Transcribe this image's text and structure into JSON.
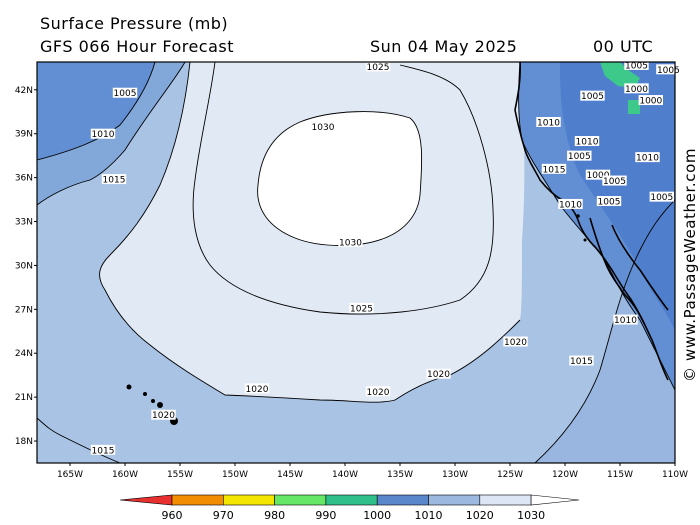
{
  "header": {
    "title": "Surface Pressure (mb)",
    "subtitle": "GFS 066 Hour Forecast",
    "date": "Sun 04 May 2025",
    "time": "00 UTC"
  },
  "credit": "© www.PassageWeather.com",
  "axes": {
    "lat_labels": [
      "42N",
      "39N",
      "36N",
      "33N",
      "30N",
      "27N",
      "24N",
      "21N",
      "18N"
    ],
    "lon_labels": [
      "165W",
      "160W",
      "155W",
      "150W",
      "145W",
      "140W",
      "135W",
      "130W",
      "125W",
      "120W",
      "115W",
      "110W"
    ]
  },
  "isobar_labels": [
    {
      "text": "1025",
      "lon": -137.0,
      "lat": 43.6
    },
    {
      "text": "1005",
      "lon": -160.0,
      "lat": 41.8
    },
    {
      "text": "1010",
      "lon": -162.0,
      "lat": 39.0
    },
    {
      "text": "1015",
      "lon": -161.0,
      "lat": 35.9
    },
    {
      "text": "1030",
      "lon": -142.0,
      "lat": 39.5
    },
    {
      "text": "1030",
      "lon": -139.5,
      "lat": 31.6
    },
    {
      "text": "1025",
      "lon": -138.5,
      "lat": 27.1
    },
    {
      "text": "1020",
      "lon": -124.5,
      "lat": 24.8
    },
    {
      "text": "1020",
      "lon": -148.0,
      "lat": 21.6
    },
    {
      "text": "1020",
      "lon": -131.5,
      "lat": 22.6
    },
    {
      "text": "1020",
      "lon": -137.0,
      "lat": 21.4
    },
    {
      "text": "1020",
      "lon": -156.5,
      "lat": 19.8
    },
    {
      "text": "1015",
      "lon": -162.0,
      "lat": 17.4
    },
    {
      "text": "1010",
      "lon": -121.5,
      "lat": 39.8
    },
    {
      "text": "1015",
      "lon": -121.0,
      "lat": 36.6
    },
    {
      "text": "1005",
      "lon": -118.7,
      "lat": 37.5
    },
    {
      "text": "1010",
      "lon": -118.0,
      "lat": 38.5
    },
    {
      "text": "1000",
      "lon": -117.0,
      "lat": 36.2
    },
    {
      "text": "1005",
      "lon": -115.5,
      "lat": 35.8
    },
    {
      "text": "1010",
      "lon": -119.5,
      "lat": 34.2
    },
    {
      "text": "1005",
      "lon": -116.0,
      "lat": 34.4
    },
    {
      "text": "1005",
      "lon": -111.2,
      "lat": 34.7
    },
    {
      "text": "1010",
      "lon": -112.5,
      "lat": 37.4
    },
    {
      "text": "1005",
      "lon": -117.5,
      "lat": 41.6
    },
    {
      "text": "1000",
      "lon": -113.5,
      "lat": 42.1
    },
    {
      "text": "1000",
      "lon": -112.2,
      "lat": 41.3
    },
    {
      "text": "1005",
      "lon": -113.5,
      "lat": 43.7
    },
    {
      "text": "1005",
      "lon": -110.6,
      "lat": 43.4
    },
    {
      "text": "1010",
      "lon": -114.5,
      "lat": 26.3
    },
    {
      "text": "1015",
      "lon": -118.5,
      "lat": 23.5
    }
  ],
  "legend": {
    "levels": [
      "960",
      "970",
      "980",
      "990",
      "1000",
      "1010",
      "1020",
      "1030"
    ],
    "colors": [
      "#e83030",
      "#f28c00",
      "#f5e600",
      "#66e866",
      "#2fbf8a",
      "#5a86cc",
      "#9cb8df",
      "#dce6f4",
      "#ffffff"
    ]
  },
  "colors": {
    "high_center": "#ffffff",
    "band_1025": "#e1e9f5",
    "band_1020": "#a9c3e4",
    "band_1015": "#82a7d9",
    "band_1010": "#628fd3",
    "land_low": "#4f7fcc",
    "green_low": "#3cc98a"
  }
}
